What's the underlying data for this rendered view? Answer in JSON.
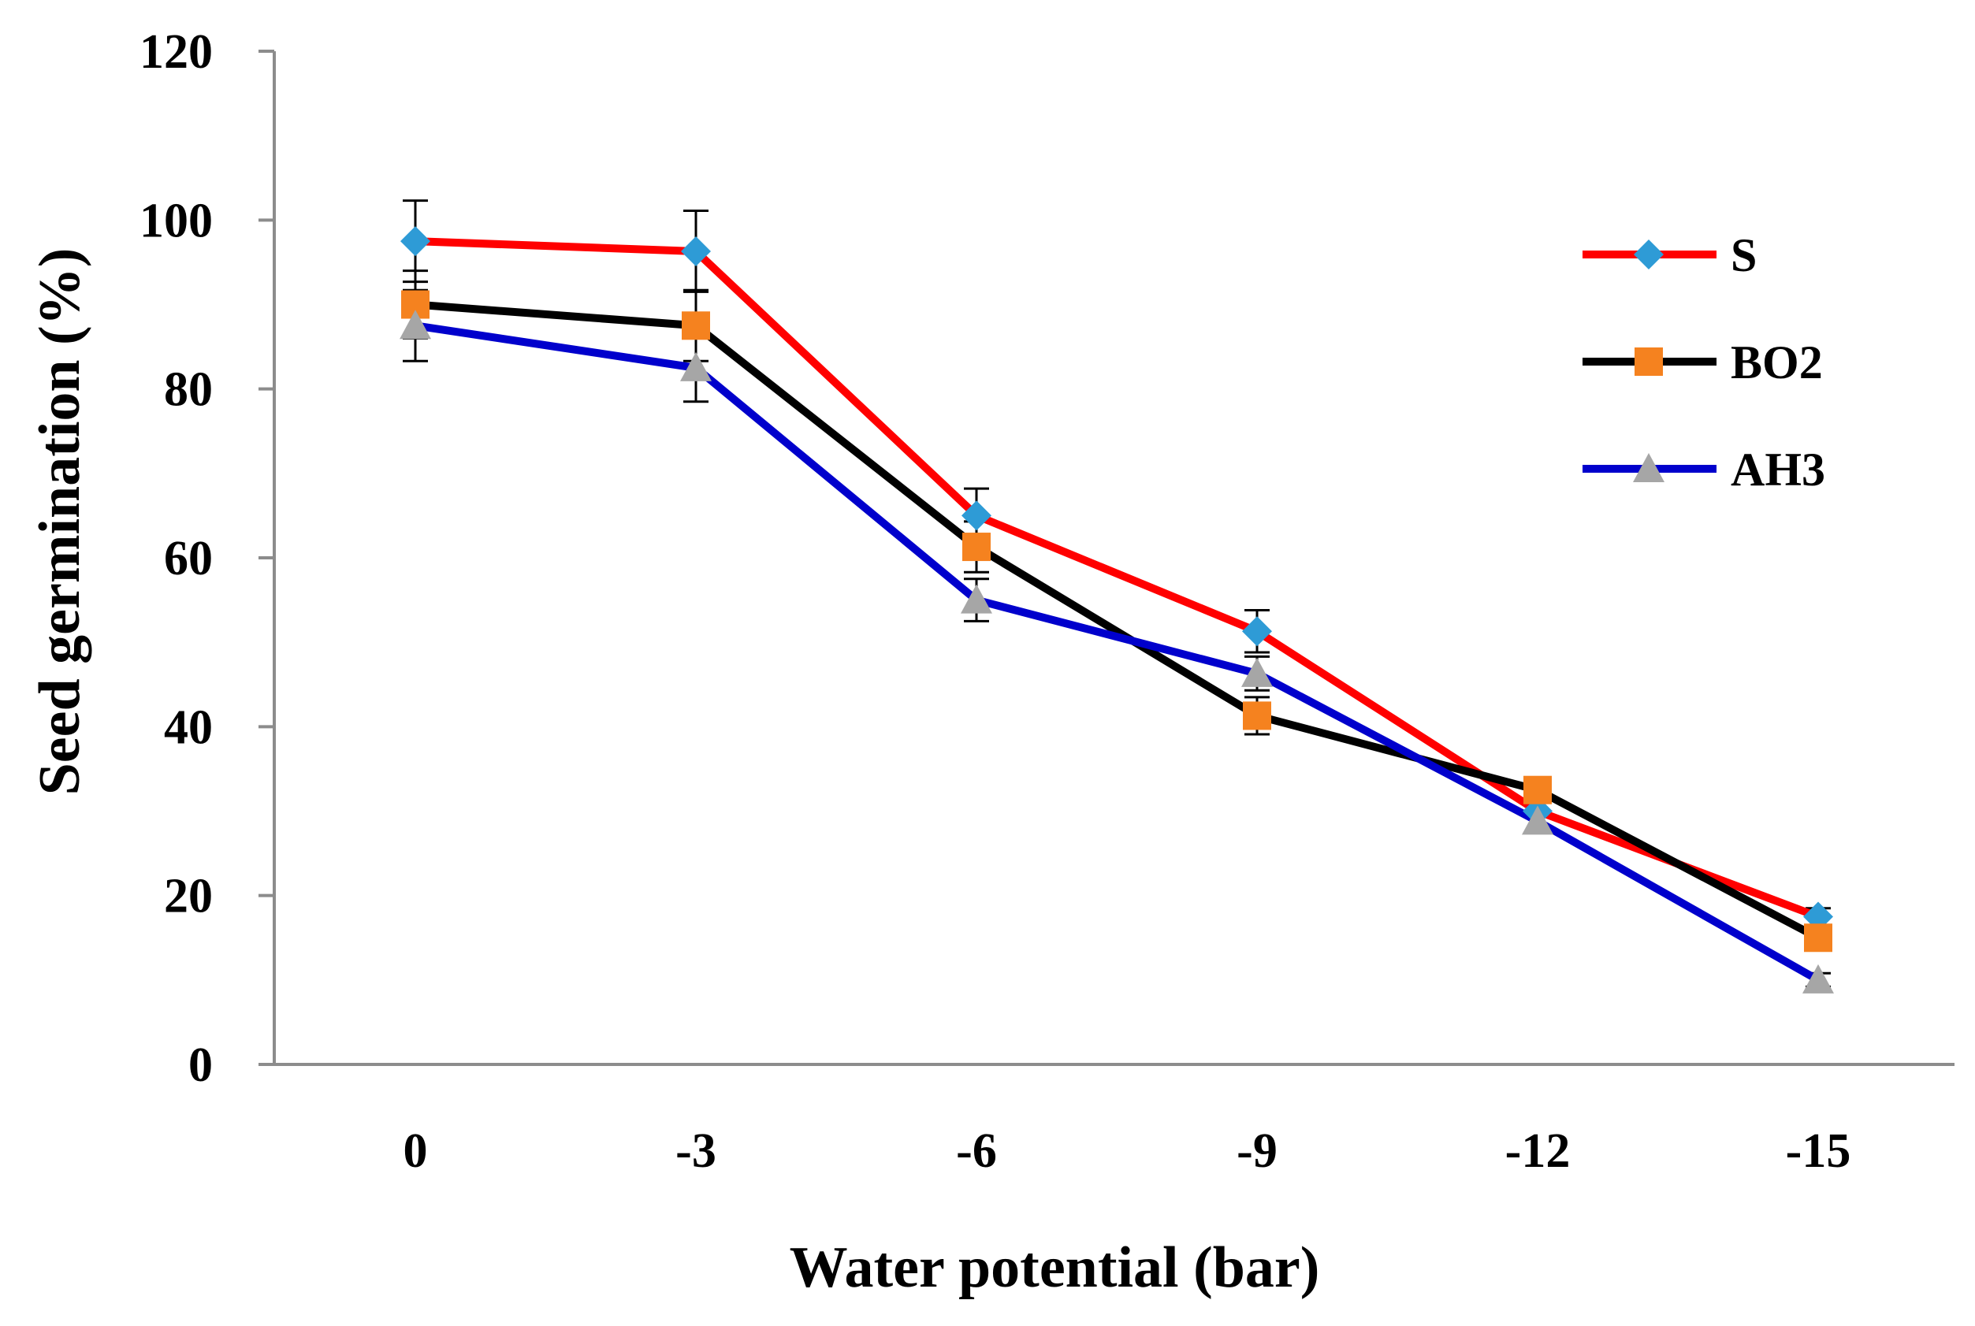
{
  "chart_data": {
    "type": "line",
    "title": "",
    "xlabel": "Water potential (bar)",
    "ylabel": "Seed germination (%)",
    "categories": [
      "0",
      "-3",
      "-6",
      "-9",
      "-12",
      "-15"
    ],
    "ylim": [
      0,
      120
    ],
    "yticks": [
      "0",
      "20",
      "40",
      "60",
      "80",
      "100",
      "120"
    ],
    "grid": false,
    "legend_position": "right",
    "series": [
      {
        "name": "S",
        "line_color": "#ff0000",
        "marker": "diamond",
        "marker_color": "#2e9bd6",
        "values": [
          97.5,
          96.3,
          65.0,
          51.3,
          30.0,
          17.5
        ],
        "errors": [
          4.8,
          4.8,
          3.2,
          2.5,
          0,
          1.0
        ]
      },
      {
        "name": "BO2",
        "line_color": "#000000",
        "marker": "square",
        "marker_color": "#f5821f",
        "values": [
          90.0,
          87.5,
          61.3,
          41.3,
          32.5,
          15.0
        ],
        "errors": [
          4.0,
          4.2,
          3.0,
          2.2,
          0,
          0
        ]
      },
      {
        "name": "AH3",
        "line_color": "#0000cc",
        "marker": "triangle",
        "marker_color": "#a6a6a6",
        "values": [
          87.5,
          82.5,
          55.0,
          46.3,
          28.8,
          10.0
        ],
        "errors": [
          4.2,
          4.0,
          2.5,
          2.0,
          0,
          0.8
        ]
      }
    ]
  }
}
